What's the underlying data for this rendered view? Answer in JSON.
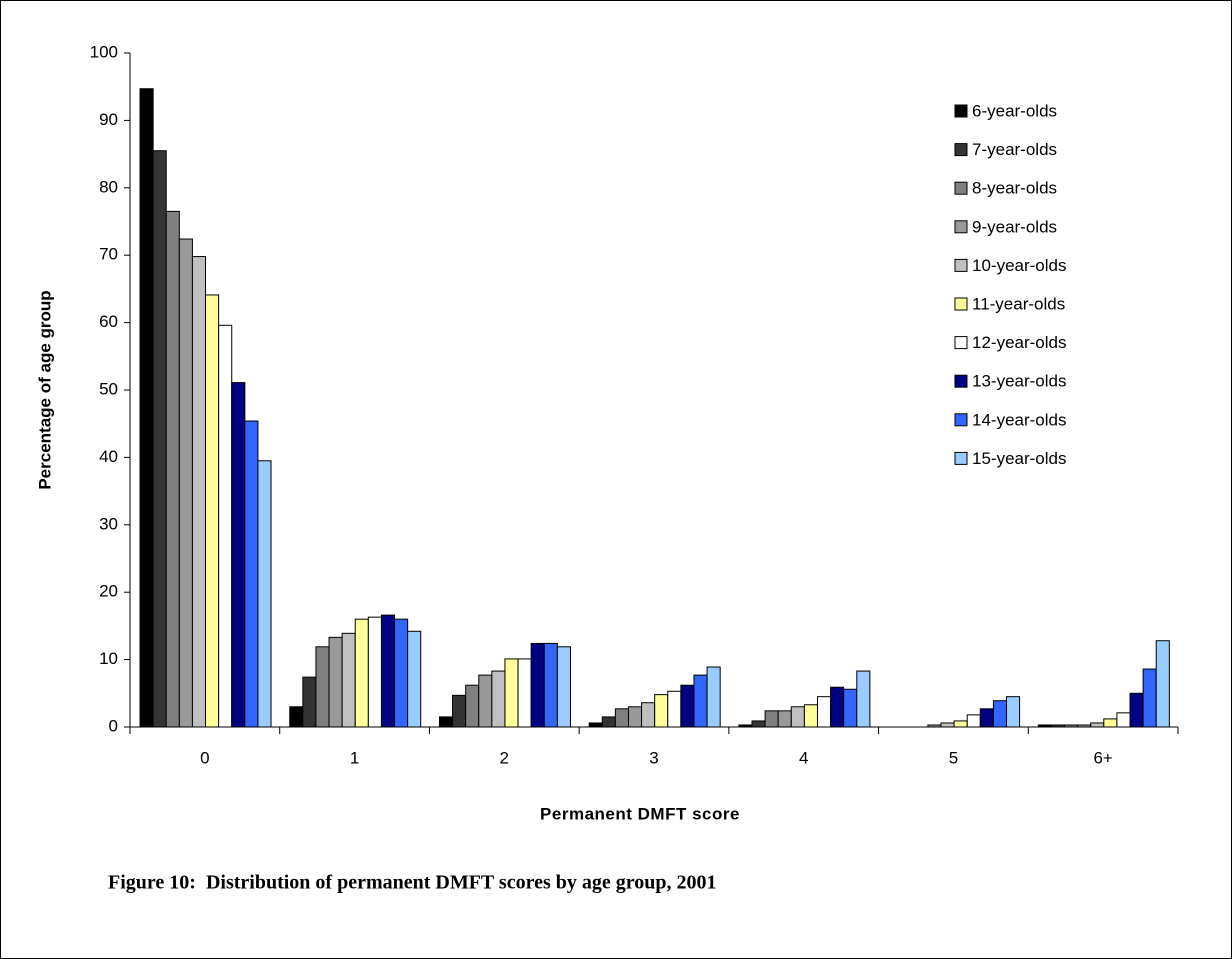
{
  "chart_data": {
    "type": "bar",
    "caption": "Figure 10:  Distribution of permanent DMFT scores by age group, 2001",
    "y_label": "Percentage of age group",
    "x_label": "Permanent DMFT score",
    "categories": [
      "0",
      "1",
      "2",
      "3",
      "4",
      "5",
      "6+"
    ],
    "ylim": [
      0,
      100
    ],
    "yticks": [
      0,
      10,
      20,
      30,
      40,
      50,
      60,
      70,
      80,
      90,
      100
    ],
    "legend": "top-right",
    "series": [
      {
        "name": "6-year-olds",
        "color": "#000000",
        "values": [
          94.7,
          3.0,
          1.5,
          0.6,
          0.3,
          0,
          0.3
        ]
      },
      {
        "name": "7-year-olds",
        "color": "#333333",
        "values": [
          85.5,
          7.4,
          4.7,
          1.5,
          0.9,
          0,
          0.3
        ]
      },
      {
        "name": "8-year-olds",
        "color": "#808080",
        "values": [
          76.5,
          11.9,
          6.2,
          2.7,
          2.4,
          0,
          0.3
        ]
      },
      {
        "name": "9-year-olds",
        "color": "#999999",
        "values": [
          72.4,
          13.3,
          7.7,
          3.0,
          2.4,
          0.3,
          0.3
        ]
      },
      {
        "name": "10-year-olds",
        "color": "#c0c0c0",
        "values": [
          69.8,
          13.9,
          8.3,
          3.6,
          3.0,
          0.6,
          0.6
        ]
      },
      {
        "name": "11-year-olds",
        "color": "#ffff99",
        "values": [
          64.1,
          16.0,
          10.1,
          4.8,
          3.3,
          0.9,
          1.2
        ]
      },
      {
        "name": "12-year-olds",
        "color": "#ffffff",
        "values": [
          59.6,
          16.3,
          10.1,
          5.3,
          4.5,
          1.8,
          2.1
        ]
      },
      {
        "name": "13-year-olds",
        "color": "#000080",
        "values": [
          51.1,
          16.6,
          12.4,
          6.2,
          5.9,
          2.7,
          5.0
        ]
      },
      {
        "name": "14-year-olds",
        "color": "#3366ff",
        "values": [
          45.4,
          16.0,
          12.4,
          7.7,
          5.6,
          3.9,
          8.6
        ]
      },
      {
        "name": "15-year-olds",
        "color": "#99ccff",
        "values": [
          39.5,
          14.2,
          11.9,
          8.9,
          8.3,
          4.5,
          12.8
        ]
      }
    ]
  }
}
